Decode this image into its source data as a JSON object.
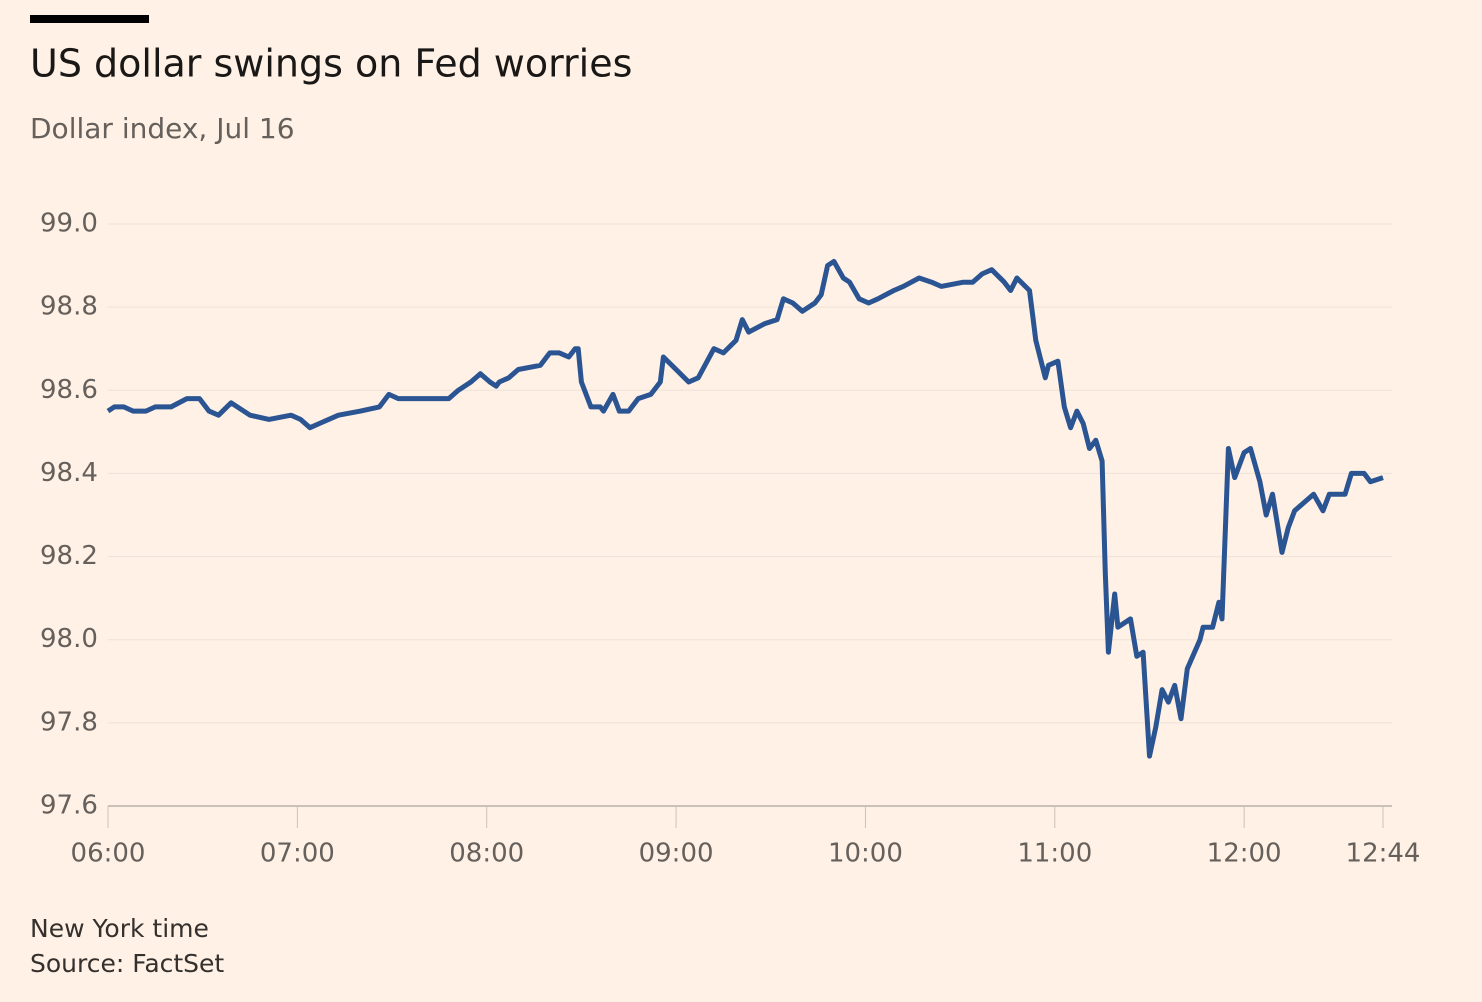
{
  "chart_data": {
    "type": "line",
    "title": "US dollar swings on Fed worries",
    "subtitle": "Dollar index, Jul 16",
    "xlabel": "New York time",
    "source": "Source: FactSet",
    "color": "#2b5493",
    "grid": true,
    "xlim": [
      "06:00",
      "12:44"
    ],
    "xticks": [
      "06:00",
      "07:00",
      "08:00",
      "09:00",
      "10:00",
      "11:00",
      "12:00",
      "12:44"
    ],
    "ylim": [
      97.6,
      99.0
    ],
    "yticks": [
      {
        "value": 99,
        "label": "99.0"
      },
      98.8,
      98.6,
      98.4,
      98.2,
      {
        "value": 98,
        "label": "98.0"
      },
      97.8,
      97.6
    ],
    "x": [
      "06:00",
      "06:02",
      "06:05",
      "06:08",
      "06:12",
      "06:15",
      "06:20",
      "06:25",
      "06:29",
      "06:32",
      "06:35",
      "06:39",
      "06:45",
      "06:51",
      "06:58",
      "07:01",
      "07:04",
      "07:07",
      "07:13",
      "07:20",
      "07:26",
      "07:29",
      "07:32",
      "07:36",
      "07:48",
      "07:51",
      "07:55",
      "07:58",
      "08:01",
      "08:03",
      "08:04",
      "08:07",
      "08:10",
      "08:17",
      "08:20",
      "08:23",
      "08:26",
      "08:28",
      "08:29",
      "08:30",
      "08:33",
      "08:36",
      "08:37",
      "08:40",
      "08:42",
      "08:45",
      "08:48",
      "08:52",
      "08:55",
      "08:56",
      "09:00",
      "09:04",
      "09:07",
      "09:12",
      "09:15",
      "09:19",
      "09:21",
      "09:23",
      "09:28",
      "09:32",
      "09:34",
      "09:37",
      "09:40",
      "09:44",
      "09:46",
      "09:48",
      "09:50",
      "09:53",
      "09:55",
      "09:58",
      "10:01",
      "10:04",
      "10:09",
      "10:12",
      "10:17",
      "10:21",
      "10:24",
      "10:31",
      "10:34",
      "10:37",
      "10:40",
      "10:44",
      "10:46",
      "10:48",
      "10:52",
      "10:53",
      "10:54",
      "10:57",
      "10:58",
      "11:01",
      "11:03",
      "11:05",
      "11:07",
      "11:09",
      "11:11",
      "11:13",
      "11:15",
      "11:16",
      "11:17",
      "11:19",
      "11:20",
      "11:24",
      "11:26",
      "11:28",
      "11:30",
      "11:32",
      "11:34",
      "11:36",
      "11:38",
      "11:40",
      "11:42",
      "11:46",
      "11:47",
      "11:50",
      "11:52",
      "11:53",
      "11:55",
      "11:57",
      "12:00",
      "12:02",
      "12:05",
      "12:07",
      "12:09",
      "12:12",
      "12:14",
      "12:16",
      "12:19",
      "12:22",
      "12:25",
      "12:27",
      "12:30",
      "12:32",
      "12:34",
      "12:38",
      "12:40",
      "12:44"
    ],
    "values": [
      98.55,
      98.56,
      98.56,
      98.55,
      98.55,
      98.56,
      98.56,
      98.58,
      98.58,
      98.55,
      98.54,
      98.57,
      98.54,
      98.53,
      98.54,
      98.53,
      98.51,
      98.52,
      98.54,
      98.55,
      98.56,
      98.59,
      98.58,
      98.58,
      98.58,
      98.6,
      98.62,
      98.64,
      98.62,
      98.61,
      98.62,
      98.63,
      98.65,
      98.66,
      98.69,
      98.69,
      98.68,
      98.7,
      98.7,
      98.62,
      98.56,
      98.56,
      98.55,
      98.59,
      98.55,
      98.55,
      98.58,
      98.59,
      98.62,
      98.68,
      98.65,
      98.62,
      98.63,
      98.7,
      98.69,
      98.72,
      98.77,
      98.74,
      98.76,
      98.77,
      98.82,
      98.81,
      98.79,
      98.81,
      98.83,
      98.9,
      98.91,
      98.87,
      98.86,
      98.82,
      98.81,
      98.82,
      98.84,
      98.85,
      98.87,
      98.86,
      98.85,
      98.86,
      98.86,
      98.88,
      98.89,
      98.86,
      98.84,
      98.87,
      98.84,
      98.78,
      98.72,
      98.63,
      98.66,
      98.67,
      98.56,
      98.51,
      98.55,
      98.52,
      98.46,
      98.48,
      98.43,
      98.16,
      97.97,
      98.11,
      98.03,
      98.05,
      97.96,
      97.97,
      97.72,
      97.79,
      97.88,
      97.85,
      97.89,
      97.81,
      97.93,
      98.0,
      98.03,
      98.03,
      98.09,
      98.05,
      98.46,
      98.39,
      98.45,
      98.46,
      98.38,
      98.3,
      98.35,
      98.21,
      98.27,
      98.31,
      98.33,
      98.35,
      98.31,
      98.35,
      98.35,
      98.35,
      98.4,
      98.4,
      98.38,
      98.39
    ]
  }
}
